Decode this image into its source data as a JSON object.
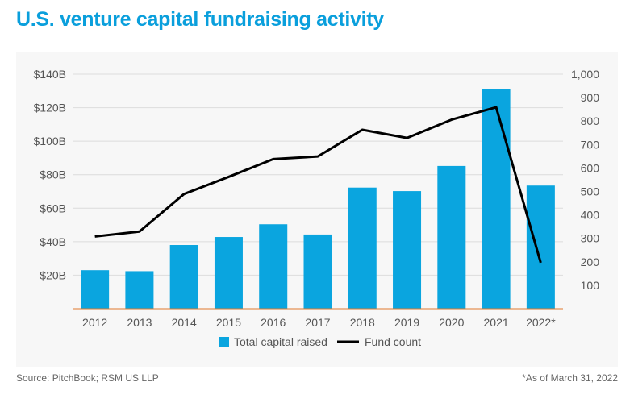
{
  "chart_data": {
    "type": "bar+line",
    "title": "U.S. venture capital fundraising activity",
    "categories": [
      "2012",
      "2013",
      "2014",
      "2015",
      "2016",
      "2017",
      "2018",
      "2019",
      "2020",
      "2021",
      "2022*"
    ],
    "series": [
      {
        "name": "Total capital raised",
        "type": "bar",
        "axis": "left",
        "color": "#0aa5df",
        "values": [
          23,
          22.4,
          38,
          42.8,
          50.4,
          44.3,
          72.3,
          70.2,
          85.2,
          131.3,
          73.5
        ]
      },
      {
        "name": "Fund count",
        "type": "line",
        "axis": "right",
        "color": "#000000",
        "values": [
          308,
          329,
          489,
          562,
          638,
          649,
          763,
          728,
          806,
          859,
          196
        ]
      }
    ],
    "left_axis": {
      "ylim": [
        0,
        140
      ],
      "ticks": [
        20,
        40,
        60,
        80,
        100,
        120,
        140
      ],
      "tick_labels": [
        "$20B",
        "$40B",
        "$60B",
        "$80B",
        "$100B",
        "$120B",
        "$140B"
      ]
    },
    "right_axis": {
      "ylim": [
        0,
        1000
      ],
      "ticks": [
        100,
        200,
        300,
        400,
        500,
        600,
        700,
        800,
        900,
        1000
      ],
      "tick_labels": [
        "100",
        "200",
        "300",
        "400",
        "500",
        "600",
        "700",
        "800",
        "900",
        "1,000"
      ]
    },
    "grid": true,
    "legend": "bottom"
  },
  "footer": {
    "source": "Source: PitchBook; RSM US LLP",
    "note": "*As of March 31, 2022"
  }
}
